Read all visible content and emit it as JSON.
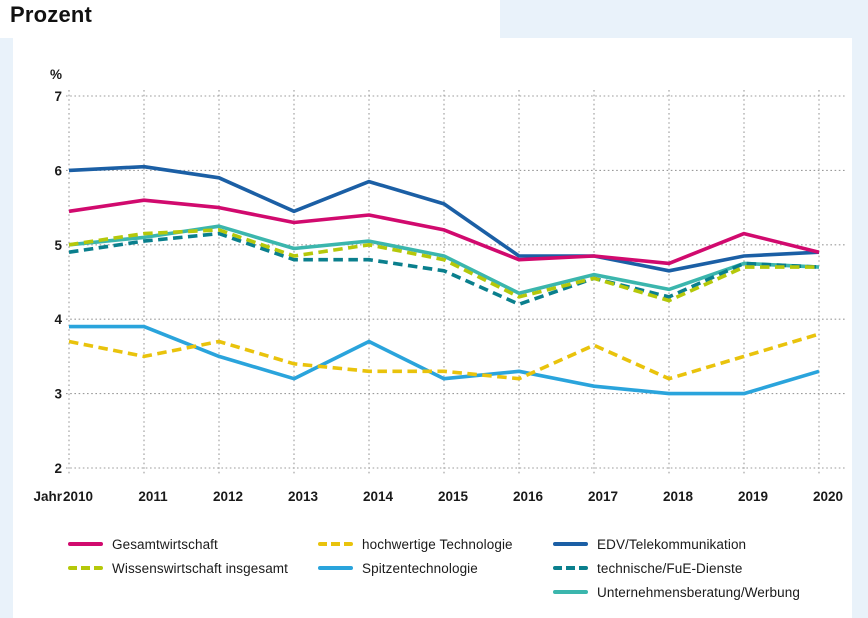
{
  "page": {
    "title": "Prozent",
    "background_color": "#e9f2fa",
    "panel_color": "#ffffff"
  },
  "chart_data": {
    "type": "line",
    "title": "Prozent",
    "xlabel": "Jahr",
    "ylabel": "%",
    "categories": [
      "2010",
      "2011",
      "2012",
      "2013",
      "2014",
      "2015",
      "2016",
      "2017",
      "2018",
      "2019",
      "2020"
    ],
    "ylim": [
      2,
      7
    ],
    "y_ticks": [
      7,
      6,
      5,
      4,
      3,
      2
    ],
    "grid": "dotted",
    "legend_position": "bottom",
    "series": [
      {
        "name": "Gesamtwirtschaft",
        "color": "#d10a6e",
        "dash": false,
        "values": [
          5.45,
          5.6,
          5.5,
          5.3,
          5.4,
          5.2,
          4.8,
          4.85,
          4.75,
          5.15,
          4.9
        ]
      },
      {
        "name": "Wissenswirtschaft insgesamt",
        "color": "#b5c80a",
        "dash": true,
        "values": [
          5.0,
          5.15,
          5.2,
          4.85,
          5.0,
          4.8,
          4.3,
          4.55,
          4.25,
          4.7,
          4.7
        ]
      },
      {
        "name": "hochwertige Technologie",
        "color": "#e9c30c",
        "dash": true,
        "values": [
          3.7,
          3.5,
          3.7,
          3.4,
          3.3,
          3.3,
          3.2,
          3.65,
          3.2,
          3.5,
          3.8
        ]
      },
      {
        "name": "Spitzentechnologie",
        "color": "#2aa4dc",
        "dash": false,
        "values": [
          3.9,
          3.9,
          3.5,
          3.2,
          3.7,
          3.2,
          3.3,
          3.1,
          3.0,
          3.0,
          3.3
        ]
      },
      {
        "name": "EDV/Telekommunikation",
        "color": "#1b5fa5",
        "dash": false,
        "values": [
          6.0,
          6.05,
          5.9,
          5.45,
          5.85,
          5.55,
          4.85,
          4.85,
          4.65,
          4.85,
          4.9
        ]
      },
      {
        "name": "technische/FuE-Dienste",
        "color": "#0a7f8d",
        "dash": true,
        "values": [
          4.9,
          5.05,
          5.15,
          4.8,
          4.8,
          4.65,
          4.2,
          4.55,
          4.3,
          4.75,
          4.7
        ]
      },
      {
        "name": "Unternehmensberatung/Werbung",
        "color": "#3bb6ad",
        "dash": false,
        "values": [
          5.0,
          5.1,
          5.25,
          4.95,
          5.05,
          4.85,
          4.35,
          4.6,
          4.4,
          4.75,
          4.7
        ]
      }
    ],
    "draw_order": [
      6,
      5,
      1,
      3,
      2,
      4,
      0
    ]
  }
}
